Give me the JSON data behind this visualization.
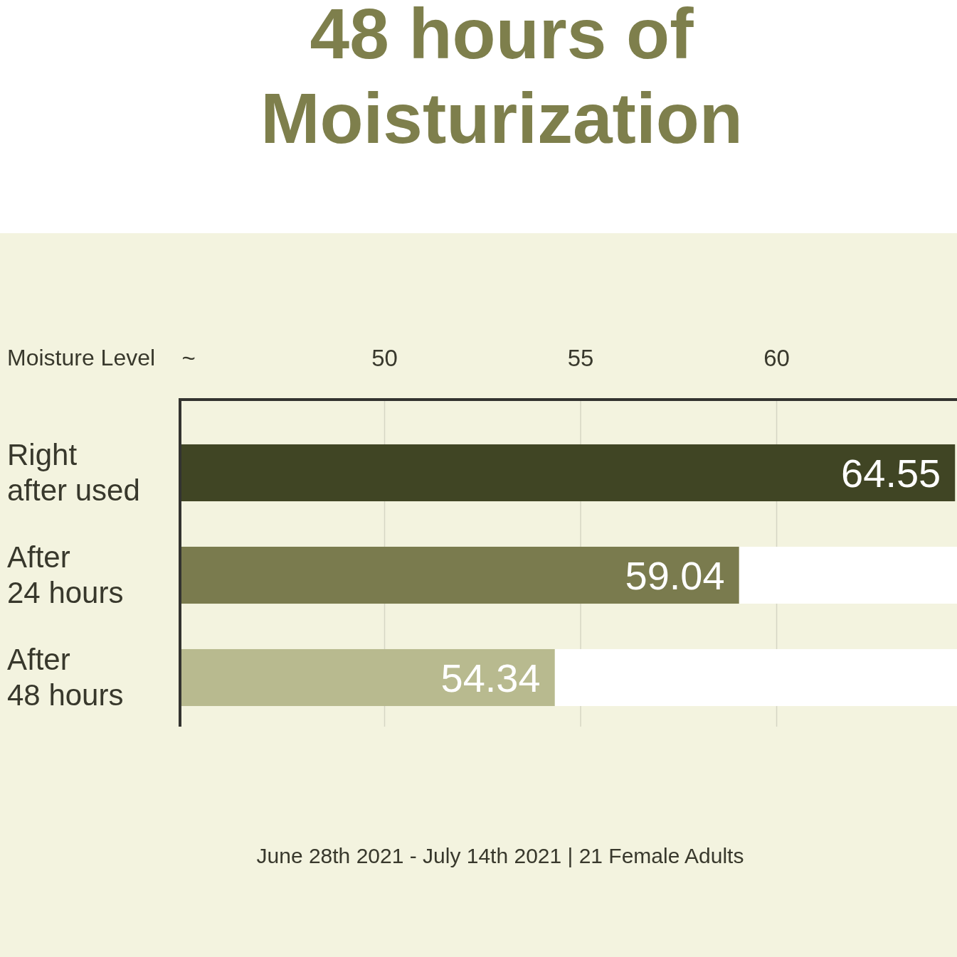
{
  "chart_data": {
    "type": "bar",
    "orientation": "horizontal",
    "title": "48 hours of\nMoisturization",
    "xlabel": "Moisture Level",
    "categories": [
      "Right\nafter used",
      "After\n24 hours",
      "After\n48 hours"
    ],
    "values": [
      64.55,
      59.04,
      54.34
    ],
    "colors": [
      "#404524",
      "#7a7b4e",
      "#b8ba8f"
    ],
    "xlim": [
      44.8,
      64.6
    ],
    "xticks": [
      {
        "value": 45,
        "label": "~"
      },
      50,
      55,
      60
    ],
    "grid": "x",
    "data_labels": true,
    "annotations": [
      "June 28th 2021 - July 14th 2021 | 21 Female Adults"
    ]
  }
}
